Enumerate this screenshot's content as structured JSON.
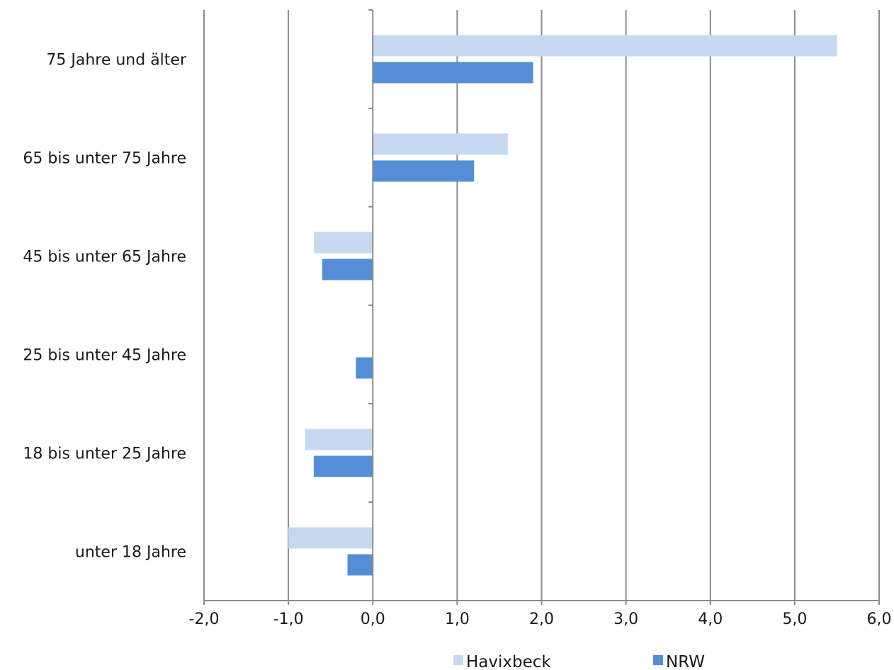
{
  "chart_data": {
    "type": "bar",
    "orientation": "horizontal",
    "categories": [
      "unter 18 Jahre",
      "18 bis unter 25 Jahre",
      "25 bis unter 45 Jahre",
      "45 bis unter 65 Jahre",
      "65 bis unter 75 Jahre",
      "75 Jahre und älter"
    ],
    "series": [
      {
        "name": "Havixbeck",
        "color": "#c6d9f1",
        "values": [
          -1.0,
          -0.8,
          0.0,
          -0.7,
          1.6,
          5.5
        ]
      },
      {
        "name": "NRW",
        "color": "#558ed5",
        "values": [
          -0.3,
          -0.7,
          -0.2,
          -0.6,
          1.2,
          1.9
        ]
      }
    ],
    "xlim": [
      -2.0,
      6.0
    ],
    "xticks": [
      -2,
      -1,
      0,
      1,
      2,
      3,
      4,
      5,
      6
    ],
    "xtick_labels": [
      "-2,0",
      "-1,0",
      "0,0",
      "1,0",
      "2,0",
      "3,0",
      "4,0",
      "5,0",
      "6,0"
    ],
    "title": "",
    "xlabel": "",
    "ylabel": "",
    "grid": "vertical",
    "legend": "bottom",
    "gridline_color": "#8c8c8c"
  }
}
